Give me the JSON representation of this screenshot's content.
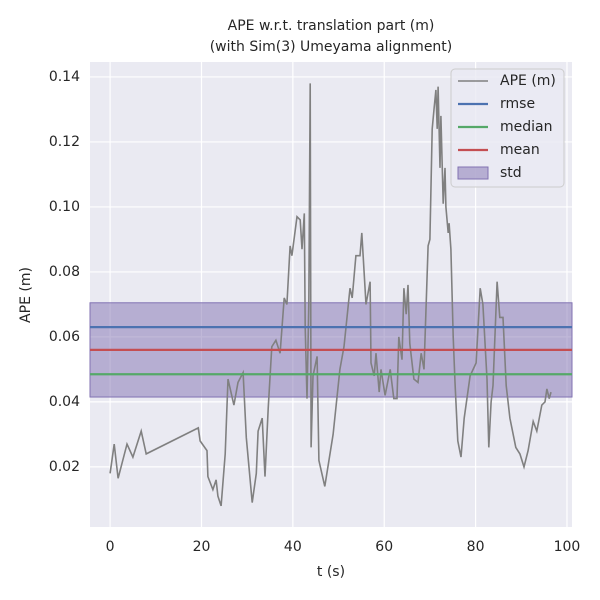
{
  "chart_data": {
    "type": "line",
    "title": "APE w.r.t. translation part (m)",
    "subtitle": "(with Sim(3) Umeyama alignment)",
    "xlabel": "t (s)",
    "ylabel": "APE (m)",
    "xlim": [
      -4.4,
      101.1
    ],
    "ylim": [
      0.0015,
      0.1446
    ],
    "xticks": [
      0,
      20,
      40,
      60,
      80,
      100
    ],
    "yticks": [
      0.02,
      0.04,
      0.06,
      0.08,
      {
        "value": 0.1,
        "label": "0.10"
      },
      0.12,
      0.14
    ],
    "grid": true,
    "legend": "upper right",
    "series": [
      {
        "name": "APE (m)",
        "color": "#808080",
        "x": [
          0,
          0.9,
          1.75,
          3.7,
          5,
          6.8,
          7.9,
          19.3,
          19.7,
          21.2,
          21.4,
          22.5,
          23.2,
          23.6,
          24.3,
          25.2,
          25.8,
          27.1,
          28,
          29.1,
          29.8,
          31.1,
          32,
          32.4,
          33.3,
          33.9,
          34.6,
          35.4,
          36.3,
          37.2,
          38.1,
          38.7,
          39.4,
          39.8,
          40.9,
          41.6,
          42,
          42.5,
          42.7,
          43.1,
          43.5,
          43.8,
          44,
          44.4,
          45.3,
          45.7,
          47,
          48.8,
          50.3,
          51.2,
          52.5,
          53,
          53.8,
          54.7,
          55.1,
          56,
          56.9,
          57.1,
          57.8,
          58.2,
          58.9,
          59.3,
          60.2,
          61.3,
          62.1,
          62.8,
          63.2,
          63.9,
          64.3,
          64.8,
          65.2,
          65.6,
          66.5,
          67.4,
          68.1,
          68.7,
          69.6,
          70,
          70.5,
          70.9,
          71.3,
          71.6,
          71.8,
          72.2,
          72.4,
          72.9,
          73.3,
          73.5,
          74,
          74.2,
          74.6,
          75.1,
          75.5,
          76.1,
          76.8,
          77.5,
          78.8,
          80.1,
          81,
          81.6,
          82.5,
          82.9,
          83.4,
          83.8,
          84.7,
          85.3,
          86,
          86.7,
          87.5,
          88.8,
          89.7,
          90.6,
          91.5,
          92.6,
          93.4,
          94.5,
          95.2,
          95.6,
          96.1,
          96.5
        ],
        "values": [
          0.018,
          0.027,
          0.0165,
          0.027,
          0.023,
          0.031,
          0.024,
          0.032,
          0.028,
          0.025,
          0.017,
          0.013,
          0.016,
          0.011,
          0.008,
          0.024,
          0.047,
          0.039,
          0.046,
          0.049,
          0.029,
          0.009,
          0.018,
          0.031,
          0.035,
          0.017,
          0.038,
          0.057,
          0.059,
          0.055,
          0.072,
          0.07,
          0.088,
          0.085,
          0.097,
          0.096,
          0.087,
          0.098,
          0.063,
          0.041,
          0.07,
          0.138,
          0.026,
          0.048,
          0.054,
          0.022,
          0.014,
          0.03,
          0.05,
          0.057,
          0.075,
          0.072,
          0.085,
          0.085,
          0.092,
          0.07,
          0.077,
          0.052,
          0.048,
          0.055,
          0.043,
          0.05,
          0.042,
          0.05,
          0.041,
          0.041,
          0.06,
          0.053,
          0.075,
          0.067,
          0.076,
          0.058,
          0.047,
          0.046,
          0.055,
          0.05,
          0.088,
          0.09,
          0.124,
          0.13,
          0.136,
          0.124,
          0.137,
          0.112,
          0.128,
          0.101,
          0.112,
          0.1,
          0.092,
          0.095,
          0.087,
          0.06,
          0.046,
          0.028,
          0.023,
          0.035,
          0.048,
          0.052,
          0.075,
          0.07,
          0.047,
          0.026,
          0.04,
          0.045,
          0.077,
          0.066,
          0.066,
          0.045,
          0.035,
          0.026,
          0.024,
          0.02,
          0.025,
          0.034,
          0.031,
          0.039,
          0.04,
          0.044,
          0.041,
          0.043
        ]
      }
    ],
    "reference_lines": [
      {
        "name": "rmse",
        "color": "#4c72b0",
        "value": 0.063
      },
      {
        "name": "median",
        "color": "#55a868",
        "value": 0.0485
      },
      {
        "name": "mean",
        "color": "#c44e52",
        "value": 0.056
      }
    ],
    "band": {
      "name": "std",
      "color": "#8172b2",
      "low": 0.0415,
      "high": 0.0705
    }
  }
}
